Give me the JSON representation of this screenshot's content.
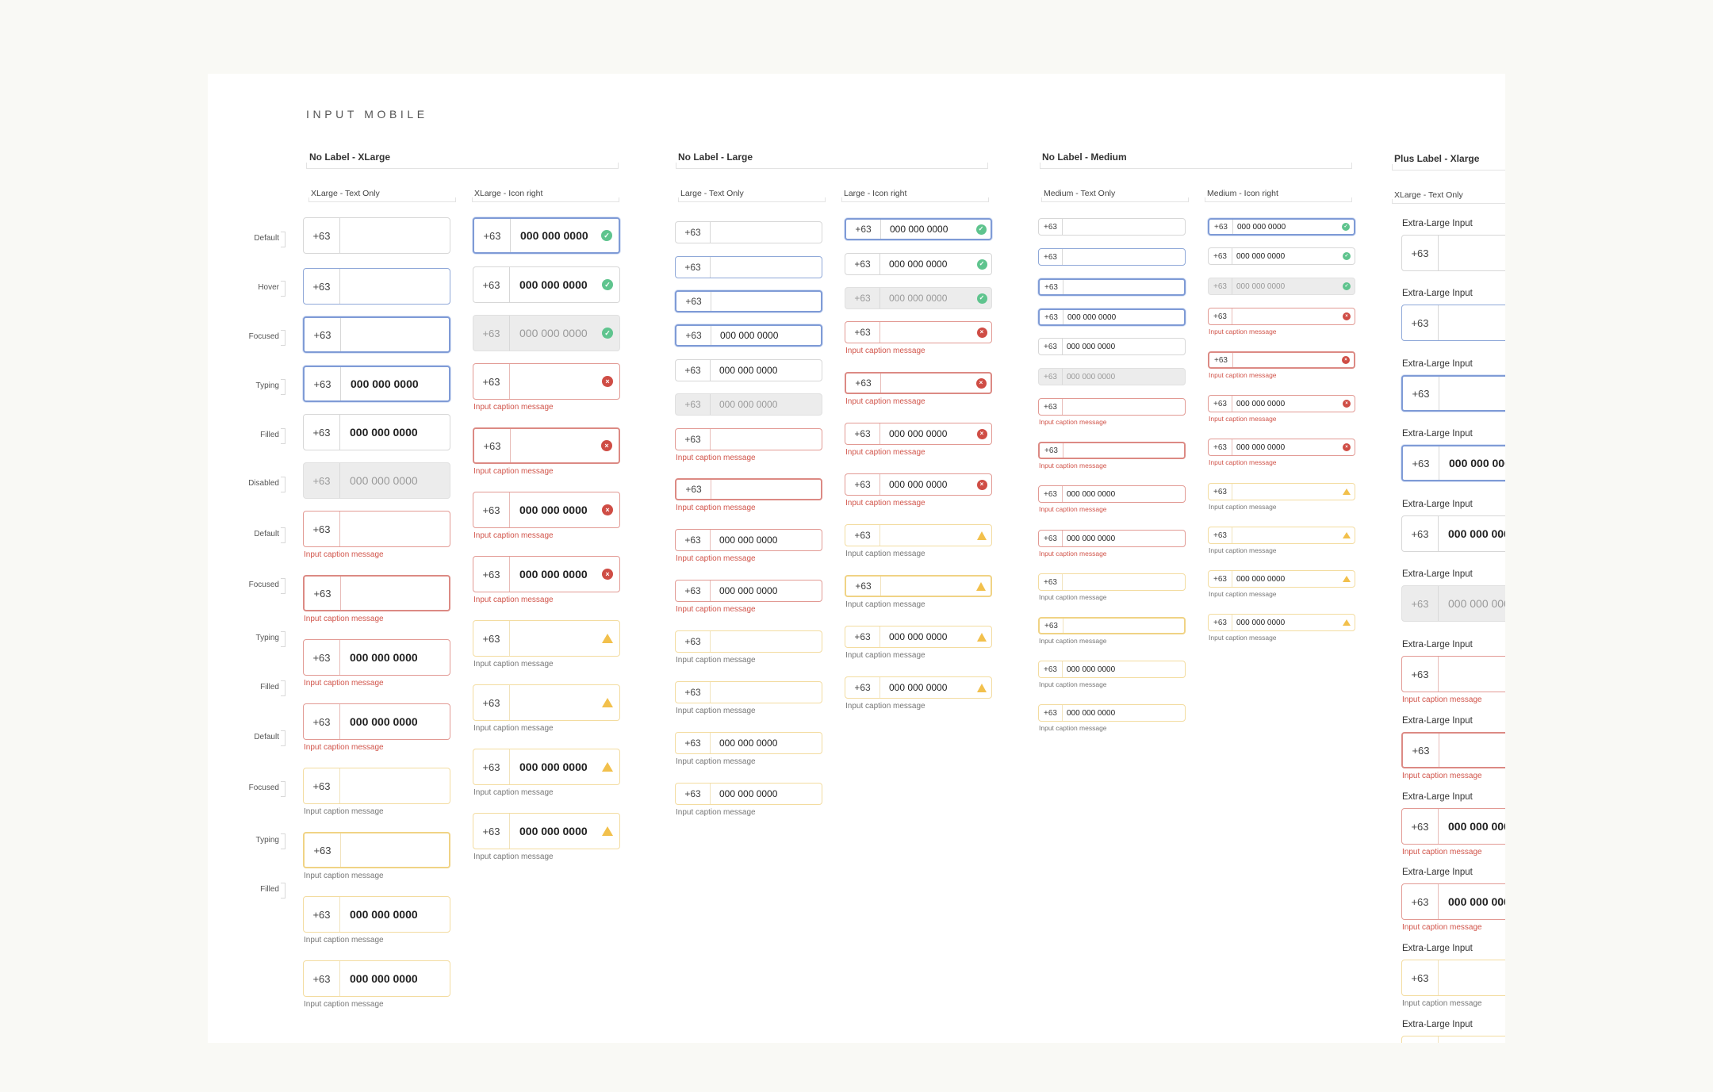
{
  "page_title": "INPUT MOBILE",
  "prefix": "+63",
  "number": "000 000 0000",
  "caption": "Input caption message",
  "xl_label": "Extra-Large Input",
  "sections": {
    "xlarge": "No Label - XLarge",
    "large": "No Label - Large",
    "medium": "No Label - Medium",
    "plus": "Plus Label - Xlarge"
  },
  "subsections": {
    "xlarge_text": "XLarge - Text Only",
    "xlarge_icon": "XLarge - Icon right",
    "large_text": "Large - Text Only",
    "large_icon": "Large - Icon right",
    "medium_text": "Medium - Text Only",
    "medium_icon": "Medium - Icon right",
    "plus_text": "XLarge - Text Only"
  },
  "row_labels": [
    "Default",
    "Hover",
    "Focused",
    "Typing",
    "Filled",
    "Disabled",
    "Default",
    "Focused",
    "Typing",
    "Filled",
    "Default",
    "Focused",
    "Typing",
    "Filled"
  ],
  "colors": {
    "focus_blue": "#7f9bd6",
    "error_red": "#cf4d45",
    "warning_yellow": "#f2c04c",
    "success_green": "#5fc48e",
    "disabled_gray": "#ececec"
  },
  "icons": {
    "success": "check-circle-icon",
    "error": "x-circle-icon",
    "warning": "warning-triangle-icon"
  }
}
